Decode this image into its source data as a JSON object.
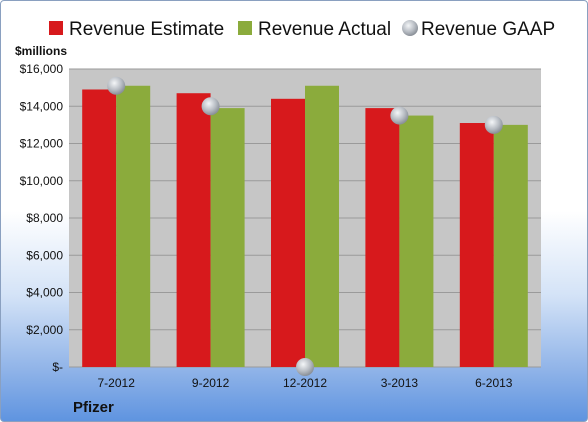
{
  "company": "Pfizer",
  "colors": {
    "estimate": "#d7191c",
    "actual": "#8bab3c",
    "gaap": "#b8bdc4",
    "plot_bg": "#c6c6c6"
  },
  "chart_data": {
    "type": "bar",
    "title": "",
    "ylabel": "$millions",
    "categories": [
      "7-2012",
      "9-2012",
      "12-2012",
      "3-2013",
      "6-2013"
    ],
    "ylim": [
      0,
      16000
    ],
    "ytick_values": [
      0,
      2000,
      4000,
      6000,
      8000,
      10000,
      12000,
      14000,
      16000
    ],
    "ytick_labels": [
      "$-",
      "$2,000",
      "$4,000",
      "$6,000",
      "$8,000",
      "$10,000",
      "$12,000",
      "$14,000",
      "$16,000"
    ],
    "grid": true,
    "legend_position": "top",
    "series": [
      {
        "name": "Revenue Estimate",
        "kind": "bar",
        "values": [
          14900,
          14700,
          14400,
          13900,
          13100
        ]
      },
      {
        "name": "Revenue Actual",
        "kind": "bar",
        "values": [
          15100,
          13900,
          15100,
          13500,
          13000
        ]
      },
      {
        "name": "Revenue GAAP",
        "kind": "point",
        "values": [
          15100,
          14000,
          0,
          13500,
          13000
        ]
      }
    ]
  }
}
